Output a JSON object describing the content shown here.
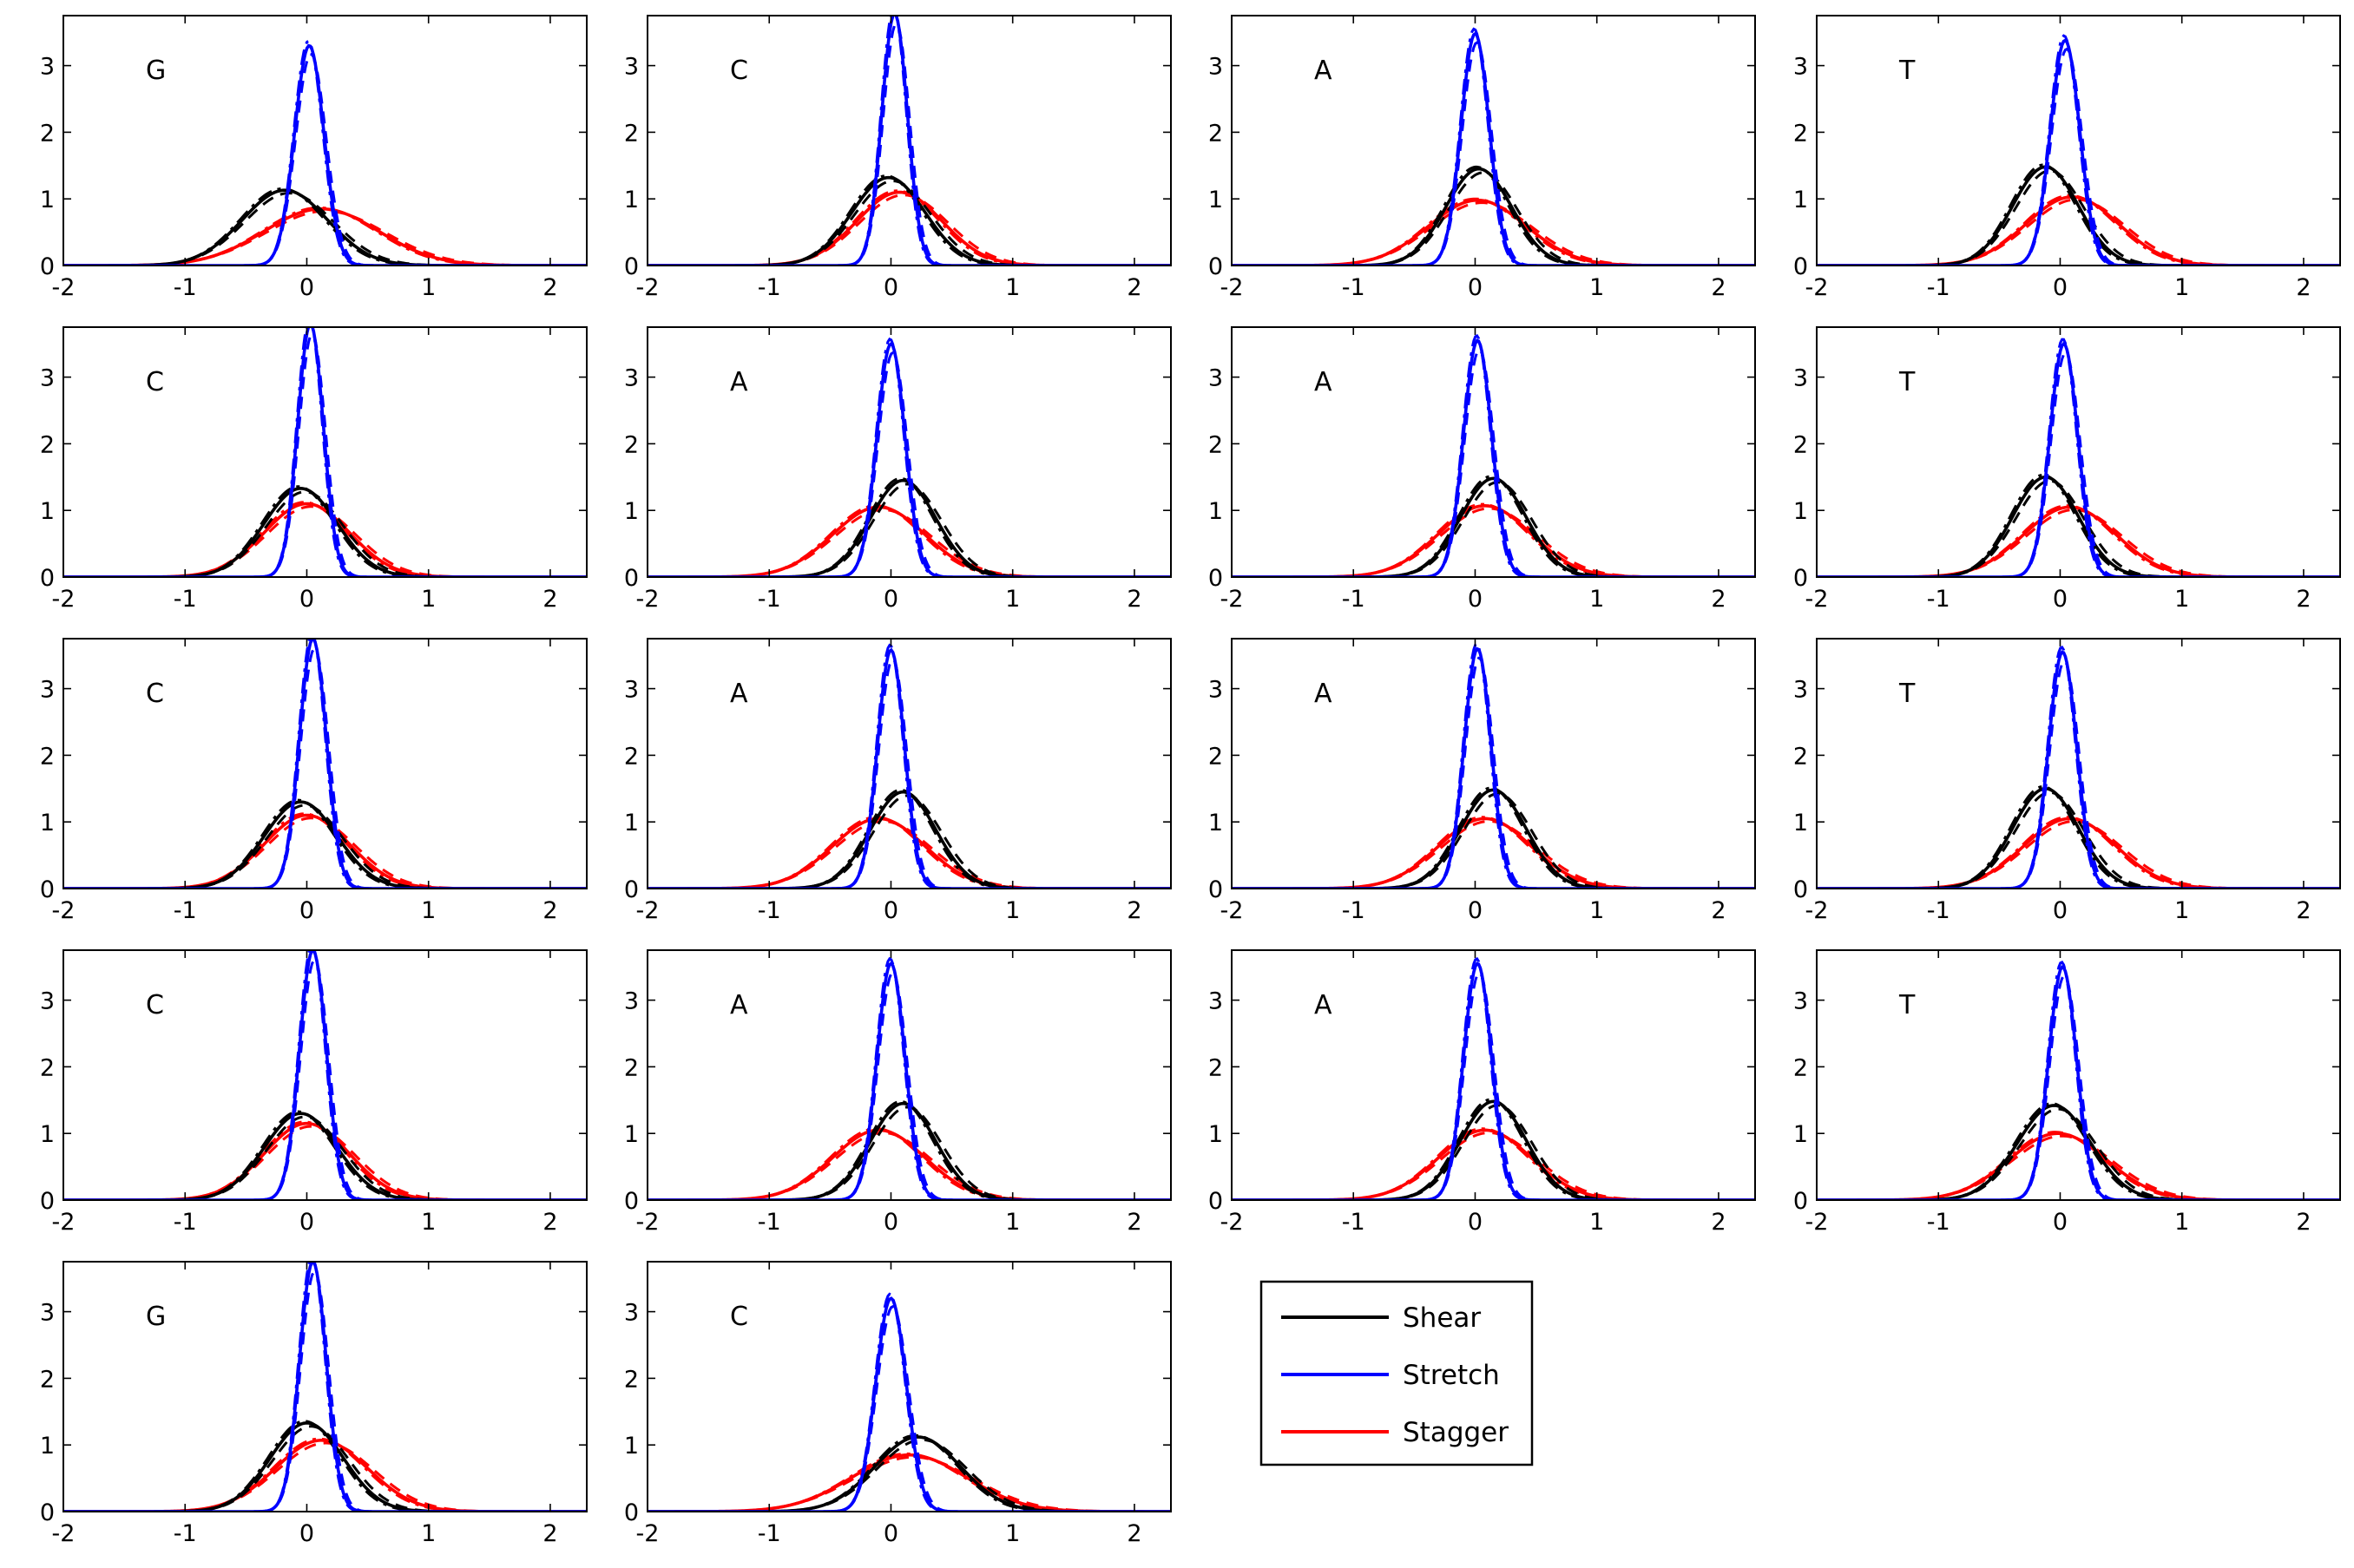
{
  "chart_data": {
    "type": "line",
    "layout": "small-multiples grid, 4 columns x 5 rows",
    "xlim": [
      -2,
      2.3
    ],
    "ylim": [
      0,
      3.75
    ],
    "x_ticks": [
      "-2",
      "-1",
      "0",
      "1",
      "2"
    ],
    "y_ticks": [
      "0",
      "1",
      "2",
      "3"
    ],
    "grid": false,
    "line_styles": [
      "solid",
      "dashed",
      "dash-dot"
    ],
    "curve_shape": "gaussian density",
    "legend": {
      "placement": "row 5, column 3",
      "entries": [
        {
          "label": "Shear",
          "color": "#000000"
        },
        {
          "label": "Stretch",
          "color": "#0000ff"
        },
        {
          "label": "Stagger",
          "color": "#ff0000"
        }
      ]
    },
    "panels": [
      {
        "label": "G",
        "shear": {
          "mean": -0.18,
          "sd": 0.35,
          "peak": 1.13
        },
        "stretch": {
          "mean": 0.02,
          "sd": 0.12,
          "peak": 3.3
        },
        "stagger": {
          "mean": 0.12,
          "sd": 0.47,
          "peak": 0.85
        }
      },
      {
        "label": "C",
        "shear": {
          "mean": -0.02,
          "sd": 0.3,
          "peak": 1.32
        },
        "stretch": {
          "mean": 0.03,
          "sd": 0.105,
          "peak": 3.78
        },
        "stagger": {
          "mean": 0.07,
          "sd": 0.35,
          "peak": 1.1
        }
      },
      {
        "label": "A",
        "shear": {
          "mean": 0.03,
          "sd": 0.27,
          "peak": 1.45
        },
        "stretch": {
          "mean": 0.0,
          "sd": 0.115,
          "peak": 3.48
        },
        "stagger": {
          "mean": 0.02,
          "sd": 0.4,
          "peak": 0.98
        }
      },
      {
        "label": "T",
        "shear": {
          "mean": -0.12,
          "sd": 0.27,
          "peak": 1.48
        },
        "stretch": {
          "mean": 0.04,
          "sd": 0.12,
          "peak": 3.38
        },
        "stagger": {
          "mean": 0.1,
          "sd": 0.38,
          "peak": 1.03
        }
      },
      {
        "label": "C",
        "shear": {
          "mean": -0.05,
          "sd": 0.3,
          "peak": 1.33
        },
        "stretch": {
          "mean": 0.03,
          "sd": 0.105,
          "peak": 3.8
        },
        "stagger": {
          "mean": 0.0,
          "sd": 0.35,
          "peak": 1.1
        }
      },
      {
        "label": "A",
        "shear": {
          "mean": 0.1,
          "sd": 0.27,
          "peak": 1.45
        },
        "stretch": {
          "mean": 0.0,
          "sd": 0.115,
          "peak": 3.5
        },
        "stagger": {
          "mean": -0.1,
          "sd": 0.38,
          "peak": 1.05
        }
      },
      {
        "label": "A",
        "shear": {
          "mean": 0.15,
          "sd": 0.27,
          "peak": 1.48
        },
        "stretch": {
          "mean": 0.02,
          "sd": 0.115,
          "peak": 3.55
        },
        "stagger": {
          "mean": 0.08,
          "sd": 0.38,
          "peak": 1.07
        }
      },
      {
        "label": "T",
        "shear": {
          "mean": -0.12,
          "sd": 0.27,
          "peak": 1.5
        },
        "stretch": {
          "mean": 0.03,
          "sd": 0.115,
          "peak": 3.5
        },
        "stagger": {
          "mean": 0.08,
          "sd": 0.38,
          "peak": 1.05
        }
      },
      {
        "label": "C",
        "shear": {
          "mean": -0.05,
          "sd": 0.3,
          "peak": 1.3
        },
        "stretch": {
          "mean": 0.05,
          "sd": 0.11,
          "peak": 3.75
        },
        "stagger": {
          "mean": 0.0,
          "sd": 0.35,
          "peak": 1.1
        }
      },
      {
        "label": "A",
        "shear": {
          "mean": 0.1,
          "sd": 0.27,
          "peak": 1.45
        },
        "stretch": {
          "mean": 0.0,
          "sd": 0.11,
          "peak": 3.58
        },
        "stagger": {
          "mean": -0.1,
          "sd": 0.38,
          "peak": 1.05
        }
      },
      {
        "label": "A",
        "shear": {
          "mean": 0.15,
          "sd": 0.27,
          "peak": 1.48
        },
        "stretch": {
          "mean": 0.02,
          "sd": 0.11,
          "peak": 3.6
        },
        "stagger": {
          "mean": 0.08,
          "sd": 0.38,
          "peak": 1.05
        }
      },
      {
        "label": "T",
        "shear": {
          "mean": -0.12,
          "sd": 0.27,
          "peak": 1.5
        },
        "stretch": {
          "mean": 0.02,
          "sd": 0.115,
          "peak": 3.55
        },
        "stagger": {
          "mean": 0.08,
          "sd": 0.38,
          "peak": 1.05
        }
      },
      {
        "label": "C",
        "shear": {
          "mean": -0.05,
          "sd": 0.3,
          "peak": 1.3
        },
        "stretch": {
          "mean": 0.05,
          "sd": 0.11,
          "peak": 3.75
        },
        "stagger": {
          "mean": 0.0,
          "sd": 0.35,
          "peak": 1.15
        }
      },
      {
        "label": "A",
        "shear": {
          "mean": 0.1,
          "sd": 0.27,
          "peak": 1.45
        },
        "stretch": {
          "mean": 0.0,
          "sd": 0.115,
          "peak": 3.55
        },
        "stagger": {
          "mean": -0.1,
          "sd": 0.38,
          "peak": 1.05
        }
      },
      {
        "label": "A",
        "shear": {
          "mean": 0.15,
          "sd": 0.27,
          "peak": 1.48
        },
        "stretch": {
          "mean": 0.02,
          "sd": 0.115,
          "peak": 3.55
        },
        "stagger": {
          "mean": 0.08,
          "sd": 0.38,
          "peak": 1.05
        }
      },
      {
        "label": "T",
        "shear": {
          "mean": -0.05,
          "sd": 0.3,
          "peak": 1.42
        },
        "stretch": {
          "mean": 0.02,
          "sd": 0.115,
          "peak": 3.5
        },
        "stagger": {
          "mean": -0.02,
          "sd": 0.4,
          "peak": 1.0
        }
      },
      {
        "label": "G",
        "shear": {
          "mean": 0.0,
          "sd": 0.3,
          "peak": 1.33
        },
        "stretch": {
          "mean": 0.05,
          "sd": 0.11,
          "peak": 3.75
        },
        "stagger": {
          "mean": 0.12,
          "sd": 0.38,
          "peak": 1.07
        }
      },
      {
        "label": "C",
        "shear": {
          "mean": 0.22,
          "sd": 0.35,
          "peak": 1.12
        },
        "stretch": {
          "mean": 0.0,
          "sd": 0.125,
          "peak": 3.2
        },
        "stagger": {
          "mean": 0.15,
          "sd": 0.47,
          "peak": 0.85
        }
      }
    ]
  }
}
